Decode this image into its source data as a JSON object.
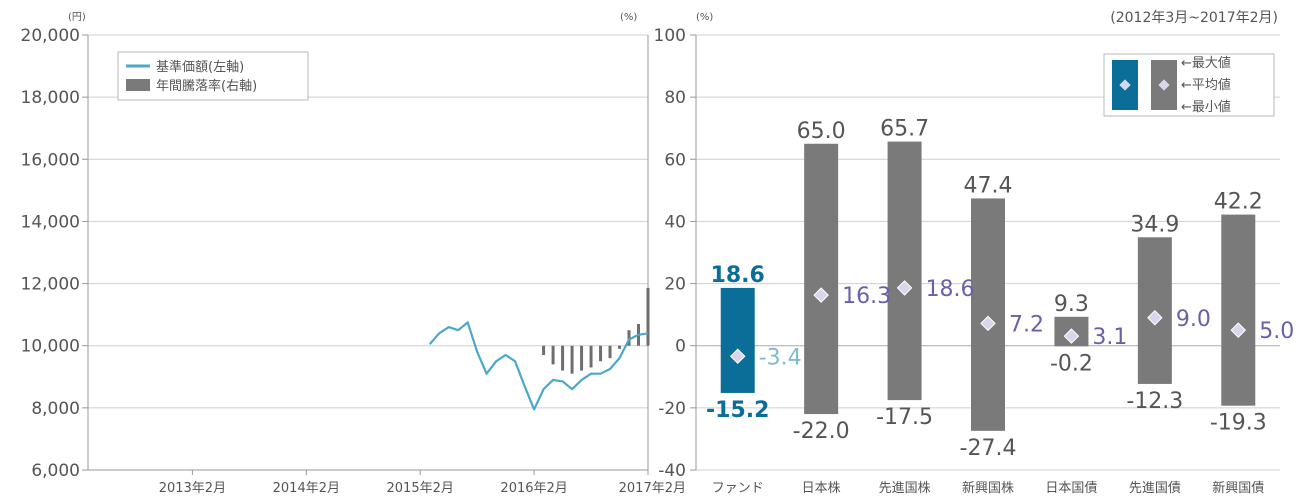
{
  "chart_data": [
    {
      "type": "line",
      "left_unit": "(円)",
      "right_unit": "(%)",
      "y_ticks": [
        "20,000",
        "18,000",
        "16,000",
        "14,000",
        "12,000",
        "10,000",
        "8,000",
        "6,000"
      ],
      "ylim": [
        6000,
        20000
      ],
      "right_ylim": [
        -40,
        100
      ],
      "x_ticks": [
        {
          "label": "2013年2月",
          "date": "2013-02"
        },
        {
          "label": "2014年2月",
          "date": "2014-02"
        },
        {
          "label": "2015年2月",
          "date": "2015-02"
        },
        {
          "label": "2016年2月",
          "date": "2016-02"
        },
        {
          "label": "2017年2月",
          "date": "2017-02"
        }
      ],
      "xlim": [
        "2012-03",
        "2017-02"
      ],
      "legend": {
        "placement": "top-left",
        "items": [
          {
            "name": "基準価額(左軸)",
            "color": "#4aa8c8",
            "kind": "line"
          },
          {
            "name": "年間騰落率(右軸)",
            "color": "#7a7a7a",
            "kind": "bar"
          }
        ]
      },
      "nav_series": {
        "name": "基準価額(左軸)",
        "points": [
          [
            "2015-03",
            10050
          ],
          [
            "2015-04",
            10400
          ],
          [
            "2015-05",
            10600
          ],
          [
            "2015-06",
            10500
          ],
          [
            "2015-07",
            10750
          ],
          [
            "2015-08",
            9800
          ],
          [
            "2015-09",
            9100
          ],
          [
            "2015-10",
            9500
          ],
          [
            "2015-11",
            9700
          ],
          [
            "2015-12",
            9500
          ],
          [
            "2016-01",
            8700
          ],
          [
            "2016-02",
            7950
          ],
          [
            "2016-03",
            8600
          ],
          [
            "2016-04",
            8900
          ],
          [
            "2016-05",
            8850
          ],
          [
            "2016-06",
            8600
          ],
          [
            "2016-07",
            8900
          ],
          [
            "2016-08",
            9100
          ],
          [
            "2016-09",
            9100
          ],
          [
            "2016-10",
            9250
          ],
          [
            "2016-11",
            9600
          ],
          [
            "2016-12",
            10200
          ],
          [
            "2017-01",
            10350
          ],
          [
            "2017-02",
            10400
          ]
        ]
      },
      "return_series": {
        "name": "年間騰落率(右軸)",
        "points": [
          [
            "2016-03",
            -3
          ],
          [
            "2016-04",
            -6
          ],
          [
            "2016-05",
            -8
          ],
          [
            "2016-06",
            -9
          ],
          [
            "2016-07",
            -8
          ],
          [
            "2016-08",
            -7
          ],
          [
            "2016-09",
            -5
          ],
          [
            "2016-10",
            -4
          ],
          [
            "2016-11",
            -1
          ],
          [
            "2016-12",
            5
          ],
          [
            "2017-01",
            7
          ],
          [
            "2017-02",
            18.6
          ]
        ]
      }
    },
    {
      "type": "bar",
      "unit": "(%)",
      "period": "(2012年3月~2017年2月)",
      "y_ticks": [
        "100",
        "80",
        "60",
        "40",
        "20",
        "0",
        "-20",
        "-40"
      ],
      "ylim": [
        -40,
        100
      ],
      "categories": [
        "ファンド",
        "日本株",
        "先進国株",
        "新興国株",
        "日本国債",
        "先進国債",
        "新興国債"
      ],
      "max_values": [
        18.6,
        65.0,
        65.7,
        47.4,
        9.3,
        34.9,
        42.2
      ],
      "avg_values": [
        -3.4,
        16.3,
        18.6,
        7.2,
        3.1,
        9.0,
        5.0
      ],
      "min_values": [
        -15.2,
        -22.0,
        -17.5,
        -27.4,
        -0.2,
        -12.3,
        -19.3
      ],
      "max_labels": [
        "18.6",
        "65.0",
        "65.7",
        "47.4",
        "9.3",
        "34.9",
        "42.2"
      ],
      "avg_labels": [
        "-3.4",
        "16.3",
        "18.6",
        "7.2",
        "3.1",
        "9.0",
        "5.0"
      ],
      "min_labels": [
        "-15.2",
        "-22.0",
        "-17.5",
        "-27.4",
        "-0.2",
        "-12.3",
        "-19.3"
      ],
      "colors": {
        "fund": "#0b6e99",
        "others": "#7a7a7a",
        "avg_marker": "#d9d6ec",
        "avg_label": "#6b5fa8"
      },
      "legend": {
        "placement": "top-right",
        "items": [
          "←最大値",
          "←平均値",
          "←最小値"
        ]
      }
    }
  ]
}
